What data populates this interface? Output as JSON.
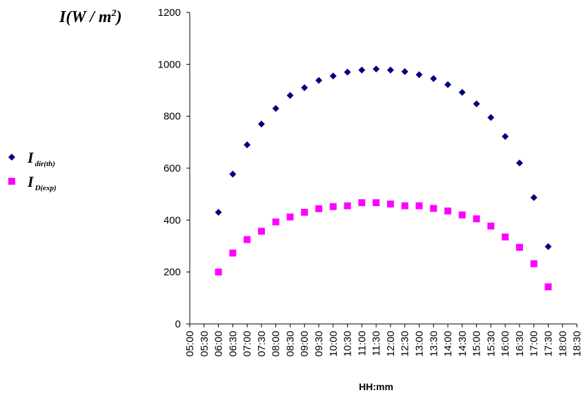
{
  "chart_data": {
    "type": "scatter",
    "xlabel": "HH:mm",
    "ylabel": {
      "base": "I(W / m",
      "sup": "2",
      "close": ")"
    },
    "ylim": [
      0,
      1200
    ],
    "yticks": [
      0,
      200,
      400,
      600,
      800,
      1000,
      1200
    ],
    "x_tick_labels": [
      "05:00",
      "05:30",
      "06:00",
      "06:30",
      "07:00",
      "07:30",
      "08:00",
      "08:30",
      "09:00",
      "09:30",
      "10:00",
      "10:30",
      "11:00",
      "11:30",
      "12:00",
      "12:30",
      "13:00",
      "13:30",
      "14:00",
      "14:30",
      "15:00",
      "15:30",
      "16:00",
      "16:30",
      "17:00",
      "17:30",
      "18:00",
      "18:30"
    ],
    "x": [
      "06:00",
      "06:30",
      "07:00",
      "07:30",
      "08:00",
      "08:30",
      "09:00",
      "09:30",
      "10:00",
      "10:30",
      "11:00",
      "11:30",
      "12:00",
      "12:30",
      "13:00",
      "13:30",
      "14:00",
      "14:30",
      "15:00",
      "15:30",
      "16:00",
      "16:30",
      "17:00",
      "17:30"
    ],
    "legend_position": "left",
    "grid": false,
    "series": [
      {
        "name": "I dir(th)",
        "legend": {
          "main": "I",
          "sub": "dir(th)"
        },
        "marker": "diamond",
        "color": "#000080",
        "values": [
          430,
          577,
          690,
          770,
          830,
          880,
          910,
          938,
          955,
          970,
          978,
          982,
          978,
          972,
          960,
          945,
          922,
          892,
          848,
          795,
          722,
          620,
          487,
          298
        ]
      },
      {
        "name": "I D(exp)",
        "legend": {
          "main": "I",
          "sub": "D(exp)"
        },
        "marker": "square",
        "color": "#ff00ff",
        "values": [
          200,
          273,
          325,
          357,
          393,
          412,
          430,
          444,
          452,
          455,
          467,
          467,
          462,
          455,
          455,
          445,
          435,
          420,
          405,
          377,
          335,
          295,
          232,
          143
        ]
      }
    ]
  }
}
